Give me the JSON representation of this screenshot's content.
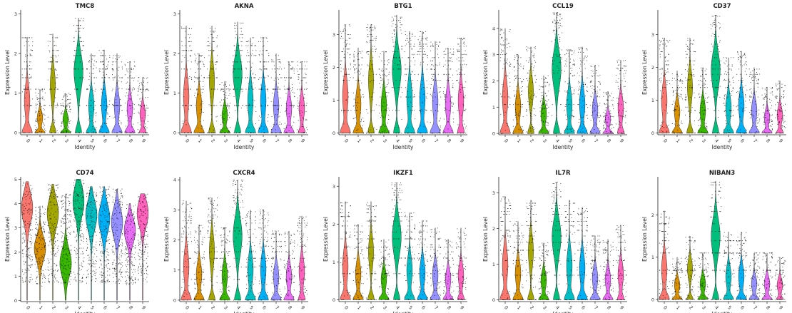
{
  "figure": {
    "colors": [
      "#F8766D",
      "#D89000",
      "#A3A500",
      "#39B600",
      "#00BF7D",
      "#00BFC4",
      "#00B0F6",
      "#9590FF",
      "#E76BF3",
      "#FF62BC"
    ]
  },
  "chart_data": [
    {
      "type": "violin",
      "title": "TMC8",
      "xlabel": "Identity",
      "ylabel": "Expression Level",
      "categories": [
        "0",
        "1",
        "2",
        "3",
        "4",
        "5",
        "6",
        "7",
        "8",
        "9"
      ],
      "yticks": [
        0,
        1,
        2,
        3
      ],
      "ylim": [
        -0.05,
        3.1
      ],
      "max": [
        2.4,
        1.1,
        2.5,
        1.0,
        2.9,
        2.0,
        2.1,
        2.0,
        1.8,
        1.4
      ],
      "levels": [
        0.0,
        0.69,
        1.1,
        1.39,
        1.61,
        1.79,
        1.95,
        2.08,
        2.2,
        2.3,
        2.4,
        2.48,
        2.56,
        2.64,
        2.71,
        2.77,
        2.83,
        2.89
      ]
    },
    {
      "type": "violin",
      "title": "AKNA",
      "xlabel": "Identity",
      "ylabel": "Expression Level",
      "categories": [
        "0",
        "1",
        "2",
        "3",
        "4",
        "5",
        "6",
        "7",
        "8",
        "9"
      ],
      "yticks": [
        0,
        1,
        2,
        3
      ],
      "ylim": [
        -0.05,
        3.1
      ],
      "max": [
        2.7,
        2.0,
        2.7,
        1.3,
        2.8,
        2.4,
        2.4,
        2.0,
        1.8,
        1.8
      ],
      "levels": [
        0.0,
        0.69,
        1.1,
        1.39,
        1.61,
        1.79,
        1.95,
        2.08,
        2.2,
        2.3,
        2.4,
        2.48,
        2.56,
        2.64,
        2.71,
        2.77,
        2.83,
        2.89
      ]
    },
    {
      "type": "violin",
      "title": "BTG1",
      "xlabel": "Identity",
      "ylabel": "Expression Level",
      "categories": [
        "0",
        "1",
        "2",
        "3",
        "4",
        "5",
        "6",
        "7",
        "8",
        "9"
      ],
      "yticks": [
        0,
        1,
        2,
        3
      ],
      "ylim": [
        -0.05,
        3.75
      ],
      "max": [
        3.3,
        2.6,
        3.3,
        2.5,
        3.6,
        3.1,
        3.1,
        2.8,
        2.6,
        2.9
      ],
      "levels": [
        0.0,
        0.69,
        1.1,
        1.39,
        1.61,
        1.79,
        1.95,
        2.08,
        2.2,
        2.3,
        2.4,
        2.48,
        2.56,
        2.64,
        2.71,
        2.77,
        2.83,
        2.89,
        2.94,
        3.0,
        3.04,
        3.09,
        3.14,
        3.18,
        3.22,
        3.26,
        3.3,
        3.33,
        3.37,
        3.4,
        3.43,
        3.47,
        3.5,
        3.53,
        3.56,
        3.58,
        3.61,
        3.64
      ]
    },
    {
      "type": "violin",
      "title": "CCL19",
      "xlabel": "Identity",
      "ylabel": "Expression Level",
      "categories": [
        "0",
        "1",
        "2",
        "3",
        "4",
        "5",
        "6",
        "7",
        "8",
        "9"
      ],
      "yticks": [
        0,
        1,
        2,
        3,
        4
      ],
      "ylim": [
        -0.05,
        4.7
      ],
      "max": [
        4.0,
        3.0,
        3.3,
        2.2,
        4.6,
        3.2,
        3.3,
        2.6,
        1.6,
        2.8
      ],
      "levels": [
        0.0,
        0.69,
        1.1,
        1.39,
        1.61,
        1.79,
        1.95,
        2.08,
        2.2,
        2.3,
        2.4,
        2.48,
        2.56,
        2.64,
        2.71,
        2.77,
        2.83,
        2.89,
        2.94,
        3.0,
        3.04,
        3.09,
        3.14,
        3.18,
        3.22,
        3.26,
        3.3,
        3.33,
        3.37,
        3.4,
        3.43,
        3.47,
        3.5,
        3.53,
        3.56,
        3.58,
        3.61,
        3.64,
        3.66,
        3.69,
        3.71,
        3.74,
        3.76,
        3.78,
        3.81,
        3.83,
        3.85,
        3.87,
        3.89,
        3.91,
        3.93,
        3.95,
        3.97,
        3.99,
        4.01,
        4.03,
        4.04,
        4.06,
        4.08,
        4.09,
        4.11,
        4.13,
        4.14,
        4.16,
        4.17,
        4.19,
        4.2,
        4.22,
        4.23,
        4.25,
        4.26,
        4.28,
        4.29,
        4.3,
        4.32,
        4.33,
        4.34,
        4.36,
        4.37,
        4.38,
        4.39,
        4.41,
        4.42,
        4.43,
        4.44,
        4.45,
        4.47,
        4.48,
        4.49,
        4.5,
        4.51,
        4.52,
        4.53,
        4.54,
        4.55,
        4.56,
        4.57,
        4.58,
        4.59,
        4.6
      ]
    },
    {
      "type": "violin",
      "title": "CD37",
      "xlabel": "Identity",
      "ylabel": "Expression Level",
      "categories": [
        "0",
        "1",
        "2",
        "3",
        "4",
        "5",
        "6",
        "7",
        "8",
        "9"
      ],
      "yticks": [
        0,
        1,
        2,
        3
      ],
      "ylim": [
        -0.05,
        3.75
      ],
      "max": [
        2.9,
        1.9,
        2.9,
        2.0,
        3.6,
        2.3,
        2.5,
        2.0,
        1.4,
        1.6
      ],
      "levels": [
        0.0,
        0.69,
        1.1,
        1.39,
        1.61,
        1.79,
        1.95,
        2.08,
        2.2,
        2.3,
        2.4,
        2.48,
        2.56,
        2.64,
        2.71,
        2.77,
        2.83,
        2.89,
        2.94,
        3.0,
        3.04,
        3.09,
        3.14,
        3.18,
        3.22,
        3.26,
        3.3,
        3.33,
        3.37,
        3.4,
        3.43,
        3.47,
        3.5,
        3.53,
        3.56,
        3.58,
        3.61,
        3.64
      ]
    },
    {
      "type": "violin",
      "title": "CD74",
      "xlabel": "Identity",
      "ylabel": "Expression Level",
      "categories": [
        "0",
        "1",
        "2",
        "3",
        "4",
        "5",
        "6",
        "7",
        "8",
        "9"
      ],
      "yticks": [
        0,
        1,
        2,
        3,
        4,
        5
      ],
      "ylim": [
        -0.05,
        5.1
      ],
      "max": [
        4.9,
        3.9,
        4.8,
        4.4,
        5.0,
        4.7,
        4.7,
        4.6,
        4.0,
        4.4
      ],
      "levels": []
    },
    {
      "type": "violin",
      "title": "CXCR4",
      "xlabel": "Identity",
      "ylabel": "Expression Level",
      "categories": [
        "0",
        "1",
        "2",
        "3",
        "4",
        "5",
        "6",
        "7",
        "8",
        "9"
      ],
      "yticks": [
        0,
        1,
        2,
        3,
        4
      ],
      "ylim": [
        -0.05,
        4.1
      ],
      "max": [
        3.3,
        2.5,
        3.4,
        2.4,
        4.0,
        3.0,
        3.0,
        2.3,
        2.3,
        2.8
      ],
      "levels": [
        0.0,
        0.69,
        1.1,
        1.39,
        1.61,
        1.79,
        1.95,
        2.08,
        2.2,
        2.3,
        2.4,
        2.48,
        2.56,
        2.64,
        2.71,
        2.77,
        2.83,
        2.89,
        2.94,
        3.0,
        3.04,
        3.09,
        3.14,
        3.18,
        3.22,
        3.26,
        3.3,
        3.33,
        3.37,
        3.4,
        3.43,
        3.47,
        3.5,
        3.53,
        3.56,
        3.58,
        3.61,
        3.64,
        3.66,
        3.69,
        3.71,
        3.74,
        3.76,
        3.78,
        3.81,
        3.83,
        3.85,
        3.87,
        3.89,
        3.91,
        3.93,
        3.95,
        3.97,
        3.99
      ]
    },
    {
      "type": "violin",
      "title": "IKZF1",
      "xlabel": "Identity",
      "ylabel": "Expression Level",
      "categories": [
        "0",
        "1",
        "2",
        "3",
        "4",
        "5",
        "6",
        "7",
        "8",
        "9"
      ],
      "yticks": [
        0,
        1,
        2,
        3
      ],
      "ylim": [
        -0.05,
        3.25
      ],
      "max": [
        2.6,
        2.0,
        2.6,
        1.6,
        3.1,
        2.3,
        2.1,
        1.9,
        1.6,
        1.9
      ],
      "levels": [
        0.0,
        0.69,
        1.1,
        1.39,
        1.61,
        1.79,
        1.95,
        2.08,
        2.2,
        2.3,
        2.4,
        2.48,
        2.56,
        2.64,
        2.71,
        2.77,
        2.83,
        2.89,
        2.94,
        3.0,
        3.04,
        3.09
      ]
    },
    {
      "type": "violin",
      "title": "IL7R",
      "xlabel": "Identity",
      "ylabel": "Expression Level",
      "categories": [
        "0",
        "1",
        "2",
        "3",
        "4",
        "5",
        "6",
        "7",
        "8",
        "9"
      ],
      "yticks": [
        0,
        1,
        2,
        3
      ],
      "ylim": [
        -0.05,
        3.45
      ],
      "max": [
        2.9,
        2.2,
        2.8,
        1.6,
        3.3,
        2.8,
        2.6,
        1.8,
        1.7,
        2.1
      ],
      "levels": [
        0.0,
        0.69,
        1.1,
        1.39,
        1.61,
        1.79,
        1.95,
        2.08,
        2.2,
        2.3,
        2.4,
        2.48,
        2.56,
        2.64,
        2.71,
        2.77,
        2.83,
        2.89,
        2.94,
        3.0,
        3.04,
        3.09,
        3.14,
        3.18,
        3.22,
        3.26,
        3.3,
        3.33
      ]
    },
    {
      "type": "violin",
      "title": "NIBAN3",
      "xlabel": "Identity",
      "ylabel": "Expression Level",
      "categories": [
        "0",
        "1",
        "2",
        "3",
        "4",
        "5",
        "6",
        "7",
        "8",
        "9"
      ],
      "yticks": [
        0,
        1,
        2
      ],
      "ylim": [
        -0.05,
        2.9
      ],
      "max": [
        2.1,
        1.0,
        1.5,
        1.1,
        2.8,
        1.6,
        1.6,
        1.1,
        1.1,
        1.0
      ],
      "levels": [
        0.0,
        0.69,
        1.1,
        1.39,
        1.61,
        1.79,
        1.95,
        2.08,
        2.2,
        2.3,
        2.4,
        2.48,
        2.56,
        2.64,
        2.71,
        2.77
      ]
    }
  ]
}
